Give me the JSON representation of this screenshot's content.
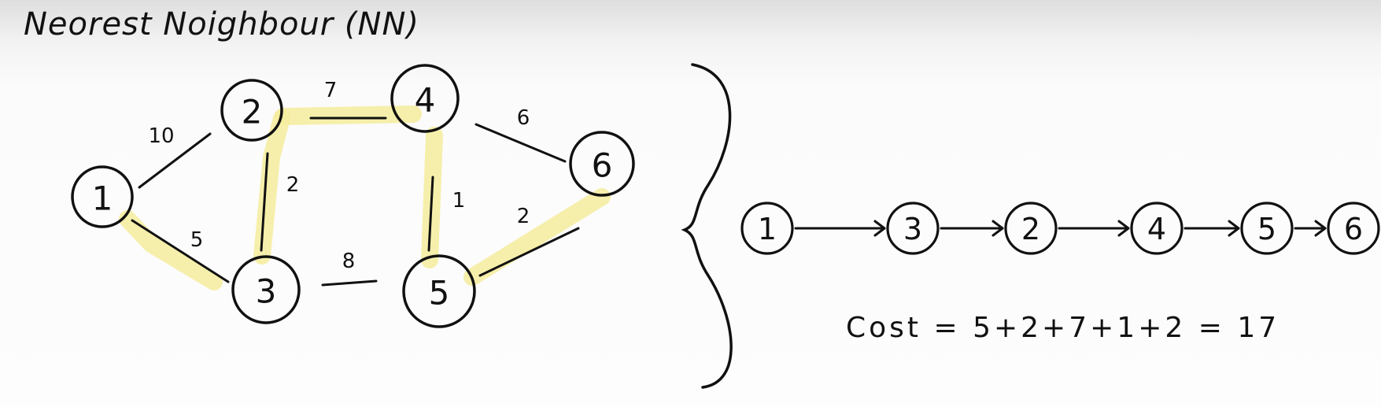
{
  "title": "Neorest Noighbour (NN)",
  "colors": {
    "ink": "#111111",
    "highlight": "#f4ec9c",
    "background": "#fdfdfd"
  },
  "graph": {
    "nodes": [
      {
        "id": "1",
        "label": "1"
      },
      {
        "id": "2",
        "label": "2"
      },
      {
        "id": "3",
        "label": "3"
      },
      {
        "id": "4",
        "label": "4"
      },
      {
        "id": "5",
        "label": "5"
      },
      {
        "id": "6",
        "label": "6"
      }
    ],
    "edges": [
      {
        "from": "1",
        "to": "2",
        "weight": "10",
        "highlighted": false
      },
      {
        "from": "1",
        "to": "3",
        "weight": "5",
        "highlighted": true
      },
      {
        "from": "2",
        "to": "3",
        "weight": "2",
        "highlighted": true
      },
      {
        "from": "2",
        "to": "4",
        "weight": "7",
        "highlighted": true
      },
      {
        "from": "3",
        "to": "5",
        "weight": "8",
        "highlighted": false
      },
      {
        "from": "4",
        "to": "5",
        "weight": "1",
        "highlighted": true
      },
      {
        "from": "4",
        "to": "6",
        "weight": "6",
        "highlighted": false
      },
      {
        "from": "5",
        "to": "6",
        "weight": "2",
        "highlighted": true
      }
    ]
  },
  "brace_icon": "right-curly-brace-icon",
  "path": {
    "sequence": [
      "1",
      "3",
      "2",
      "4",
      "5",
      "6"
    ],
    "arrow_icon": "right-arrow-icon"
  },
  "cost": {
    "text": "Cost = 5+2+7+1+2 = 17",
    "total": 17
  }
}
